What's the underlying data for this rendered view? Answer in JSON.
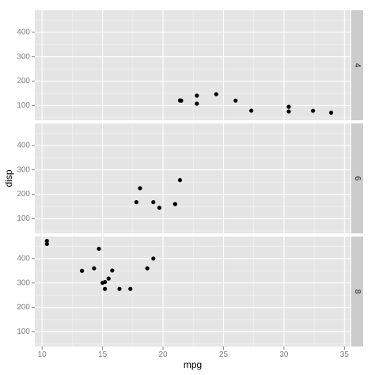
{
  "chart_data": {
    "type": "scatter",
    "xlabel": "mpg",
    "ylabel": "disp",
    "xlim": [
      9.4,
      35.5
    ],
    "ylim": [
      40,
      490
    ],
    "x_ticks": [
      10,
      15,
      20,
      25,
      30,
      35
    ],
    "y_ticks": [
      100,
      200,
      300,
      400
    ],
    "grid": true,
    "facets": [
      {
        "strip": "4",
        "points": [
          {
            "x": 22.8,
            "y": 108
          },
          {
            "x": 24.4,
            "y": 146.7
          },
          {
            "x": 22.8,
            "y": 140.8
          },
          {
            "x": 32.4,
            "y": 78.7
          },
          {
            "x": 30.4,
            "y": 75.7
          },
          {
            "x": 33.9,
            "y": 71.1
          },
          {
            "x": 21.5,
            "y": 120.1
          },
          {
            "x": 27.3,
            "y": 79
          },
          {
            "x": 26.0,
            "y": 120.3
          },
          {
            "x": 30.4,
            "y": 95.1
          },
          {
            "x": 21.4,
            "y": 121
          }
        ]
      },
      {
        "strip": "6",
        "points": [
          {
            "x": 21.0,
            "y": 160
          },
          {
            "x": 21.0,
            "y": 160
          },
          {
            "x": 21.4,
            "y": 258
          },
          {
            "x": 18.1,
            "y": 225
          },
          {
            "x": 19.2,
            "y": 167.6
          },
          {
            "x": 17.8,
            "y": 167.6
          },
          {
            "x": 19.7,
            "y": 145
          }
        ]
      },
      {
        "strip": "8",
        "points": [
          {
            "x": 18.7,
            "y": 360
          },
          {
            "x": 14.3,
            "y": 360
          },
          {
            "x": 16.4,
            "y": 275.8
          },
          {
            "x": 17.3,
            "y": 275.8
          },
          {
            "x": 15.2,
            "y": 275.8
          },
          {
            "x": 10.4,
            "y": 472
          },
          {
            "x": 10.4,
            "y": 460
          },
          {
            "x": 14.7,
            "y": 440
          },
          {
            "x": 15.5,
            "y": 318
          },
          {
            "x": 15.2,
            "y": 304
          },
          {
            "x": 13.3,
            "y": 350
          },
          {
            "x": 19.2,
            "y": 400
          },
          {
            "x": 15.8,
            "y": 351
          },
          {
            "x": 15.0,
            "y": 301
          }
        ]
      }
    ]
  },
  "colors": {
    "panel_bg": "#e5e5e5",
    "grid_major": "#ffffff",
    "grid_minor": "#f2f2f2",
    "strip_bg": "#cccccc",
    "point": "#000000"
  }
}
